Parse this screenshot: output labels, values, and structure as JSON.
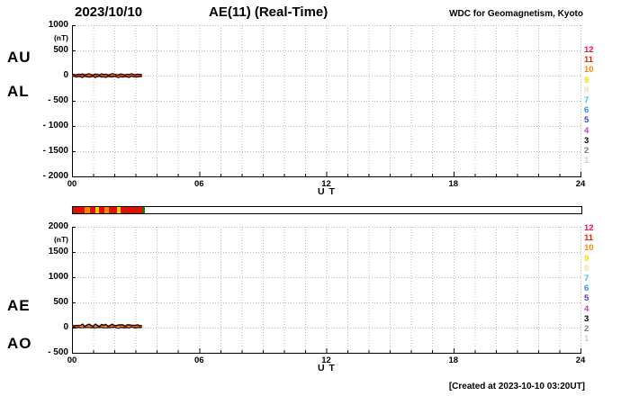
{
  "header": {
    "date": "2023/10/10",
    "title": "AE(11) (Real-Time)",
    "source": "WDC for Geomagnetism, Kyoto"
  },
  "footer": {
    "created": "[Created at 2023-10-10 03:20UT]"
  },
  "legend_stations": [
    {
      "label": "12",
      "color": "#ee1144"
    },
    {
      "label": "11",
      "color": "#ee2200"
    },
    {
      "label": "10",
      "color": "#ff8800"
    },
    {
      "label": "9",
      "color": "#ffd400"
    },
    {
      "label": "8",
      "color": "#efe3a4"
    },
    {
      "label": "7",
      "color": "#29c8f0"
    },
    {
      "label": "6",
      "color": "#2b8cff"
    },
    {
      "label": "5",
      "color": "#4343bd"
    },
    {
      "label": "4",
      "color": "#c23cc2"
    },
    {
      "label": "3",
      "color": "#000000"
    },
    {
      "label": "2",
      "color": "#7d7d7d"
    },
    {
      "label": "1",
      "color": "#cfcfcf"
    }
  ],
  "status_bar": {
    "range_hours": 24,
    "segments": [
      {
        "start": 0,
        "end": 0.55,
        "color": "#dd1100"
      },
      {
        "start": 0.55,
        "end": 0.8,
        "color": "#ff8800"
      },
      {
        "start": 0.8,
        "end": 1.05,
        "color": "#dd1100"
      },
      {
        "start": 1.05,
        "end": 1.25,
        "color": "#ffcc00"
      },
      {
        "start": 1.25,
        "end": 1.5,
        "color": "#dd1100"
      },
      {
        "start": 1.5,
        "end": 1.7,
        "color": "#ff8800"
      },
      {
        "start": 1.7,
        "end": 2.1,
        "color": "#dd1100"
      },
      {
        "start": 2.1,
        "end": 2.25,
        "color": "#ffcc00"
      },
      {
        "start": 2.25,
        "end": 3.25,
        "color": "#dd1100"
      },
      {
        "start": 3.25,
        "end": 3.4,
        "color": "#117711"
      }
    ]
  },
  "chart_data": [
    {
      "type": "line",
      "name": "AU-AL-plot",
      "left_labels": [
        "AU",
        "AL"
      ],
      "unit_label": "(nT)",
      "xlabel": "U T",
      "xlim": [
        0,
        24
      ],
      "xticks": [
        0,
        6,
        12,
        18,
        24
      ],
      "xtick_labels": [
        "00",
        "06",
        "12",
        "18",
        "24"
      ],
      "ylim": [
        -2000,
        1000
      ],
      "yticks": [
        1000,
        500,
        0,
        -500,
        -1000,
        -1500,
        -2000
      ],
      "ytick_labels": [
        "1000",
        "500",
        "0",
        "- 500",
        "- 1000",
        "- 1500",
        "- 2000"
      ],
      "grid": true,
      "x": [
        0,
        0.1,
        0.2,
        0.3,
        0.4,
        0.5,
        0.6,
        0.7,
        0.8,
        0.9,
        1,
        1.1,
        1.2,
        1.3,
        1.4,
        1.5,
        1.6,
        1.7,
        1.8,
        1.9,
        2,
        2.1,
        2.2,
        2.3,
        2.4,
        2.5,
        2.6,
        2.7,
        2.8,
        2.9,
        3,
        3.1,
        3.2,
        3.3
      ],
      "series": [
        {
          "name": "station-trace-orange",
          "color": "#ff8800",
          "width": 2.2,
          "values": [
            4,
            -8,
            10,
            -5,
            8,
            -12,
            4,
            -6,
            12,
            -4,
            6,
            -10,
            8,
            -3,
            10,
            -8,
            5,
            -10,
            6,
            -5,
            12,
            -6,
            4,
            -10,
            8,
            -4,
            10,
            -6,
            5,
            -12,
            6,
            -4,
            8,
            -2
          ]
        },
        {
          "name": "station-trace-red",
          "color": "#ee2200",
          "width": 1.2,
          "values": [
            -6,
            8,
            -10,
            5,
            -8,
            12,
            -4,
            6,
            -12,
            4,
            -6,
            10,
            -8,
            3,
            -10,
            8,
            -5,
            10,
            -6,
            5,
            -12,
            6,
            -4,
            10,
            -8,
            4,
            -10,
            6,
            -5,
            12,
            -6,
            4,
            -8,
            2
          ]
        },
        {
          "name": "AU",
          "color": "#000000",
          "width": 1.2,
          "values": [
            18,
            26,
            12,
            30,
            20,
            35,
            15,
            28,
            38,
            20,
            12,
            32,
            26,
            14,
            36,
            22,
            30,
            12,
            24,
            40,
            30,
            18,
            14,
            34,
            26,
            12,
            30,
            20,
            38,
            26,
            16,
            30,
            22,
            24
          ]
        },
        {
          "name": "AL",
          "color": "#000000",
          "width": 1.2,
          "values": [
            -22,
            -12,
            -30,
            -16,
            -26,
            -36,
            -12,
            -22,
            -32,
            -26,
            -14,
            -40,
            -20,
            -12,
            -30,
            -26,
            -36,
            -16,
            -22,
            -30,
            -12,
            -26,
            -40,
            -22,
            -30,
            -16,
            -26,
            -36,
            -12,
            -22,
            -30,
            -26,
            -16,
            -20
          ]
        }
      ]
    },
    {
      "type": "line",
      "name": "AE-AO-plot",
      "left_labels": [
        "AE",
        "AO"
      ],
      "unit_label": "(nT)",
      "xlabel": "U T",
      "xlim": [
        0,
        24
      ],
      "xticks": [
        0,
        6,
        12,
        18,
        24
      ],
      "xtick_labels": [
        "00",
        "06",
        "12",
        "18",
        "24"
      ],
      "ylim": [
        -500,
        2000
      ],
      "yticks": [
        2000,
        1500,
        1000,
        500,
        0,
        -500
      ],
      "ytick_labels": [
        "2000",
        "1500",
        "1000",
        "500",
        "0",
        "- 500"
      ],
      "grid": true,
      "x": [
        0,
        0.1,
        0.2,
        0.3,
        0.4,
        0.5,
        0.6,
        0.7,
        0.8,
        0.9,
        1,
        1.1,
        1.2,
        1.3,
        1.4,
        1.5,
        1.6,
        1.7,
        1.8,
        1.9,
        2,
        2.1,
        2.2,
        2.3,
        2.4,
        2.5,
        2.6,
        2.7,
        2.8,
        2.9,
        3,
        3.1,
        3.2,
        3.3
      ],
      "series": [
        {
          "name": "station-trace-orange",
          "color": "#ff8800",
          "width": 2.2,
          "values": [
            22,
            18,
            26,
            30,
            28,
            45,
            14,
            30,
            44,
            28,
            12,
            46,
            28,
            14,
            40,
            30,
            42,
            16,
            28,
            44,
            24,
            26,
            34,
            36,
            34,
            16,
            34,
            36,
            30,
            28,
            28,
            34,
            22,
            26
          ]
        },
        {
          "name": "station-trace-red",
          "color": "#ee2200",
          "width": 1.2,
          "values": [
            30,
            26,
            34,
            38,
            36,
            55,
            20,
            38,
            54,
            36,
            18,
            56,
            36,
            20,
            50,
            38,
            52,
            22,
            36,
            54,
            32,
            34,
            42,
            44,
            44,
            22,
            44,
            44,
            38,
            36,
            36,
            44,
            30,
            34
          ]
        },
        {
          "name": "AE",
          "color": "#000000",
          "width": 1.2,
          "values": [
            40,
            38,
            42,
            46,
            46,
            71,
            27,
            50,
            70,
            46,
            26,
            72,
            46,
            26,
            66,
            48,
            66,
            28,
            46,
            70,
            42,
            44,
            54,
            56,
            56,
            28,
            56,
            56,
            50,
            48,
            46,
            56,
            38,
            44
          ]
        },
        {
          "name": "AO",
          "color": "#000000",
          "width": 1.2,
          "values": [
            -2,
            7,
            -9,
            7,
            -3,
            -1,
            2,
            3,
            3,
            -3,
            -1,
            -4,
            3,
            1,
            3,
            -2,
            -3,
            -2,
            1,
            5,
            9,
            -4,
            -13,
            6,
            -2,
            -2,
            2,
            -8,
            13,
            2,
            -7,
            2,
            3,
            2
          ]
        }
      ]
    }
  ]
}
